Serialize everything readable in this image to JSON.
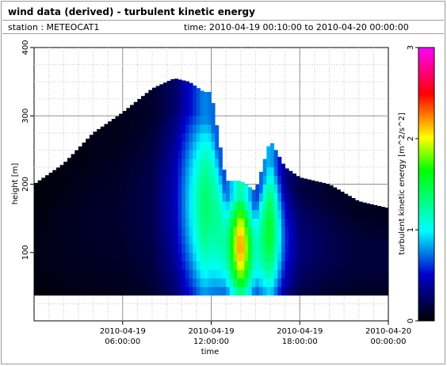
{
  "header": {
    "title": "wind data (derived) - turbulent kinetic energy",
    "station": "station : METEOCAT1",
    "time_range": "time: 2010-04-19 00:10:00 to 2010-04-20 00:00:00"
  },
  "chart_data": {
    "type": "heatmap",
    "title": "wind data (derived) - turbulent kinetic energy",
    "xlabel": "time",
    "ylabel": "height [m]",
    "colorbar_label": "turbulent kinetic energy [m^2/s^2]",
    "x_unit": "hours since 2010-04-19 00:00",
    "xlim": [
      0,
      24
    ],
    "ylim": [
      0,
      400
    ],
    "x_ticks": [
      {
        "value": 6,
        "line1": "2010-04-19",
        "line2": "06:00:00"
      },
      {
        "value": 12,
        "line1": "2010-04-19",
        "line2": "12:00:00"
      },
      {
        "value": 18,
        "line1": "2010-04-19",
        "line2": "18:00:00"
      },
      {
        "value": 24,
        "line1": "2010-04-20",
        "line2": "00:00:00"
      }
    ],
    "y_ticks": [
      100,
      200,
      300,
      400
    ],
    "colorbar_range": [
      0,
      3
    ],
    "colorbar_ticks": [
      0,
      1,
      2,
      3
    ],
    "colormap": [
      "#000000",
      "#0000cc",
      "#00ffff",
      "#00ff00",
      "#ffff00",
      "#ff0000",
      "#ff00ff"
    ],
    "grid": true,
    "tke_profile": {
      "time_hours": [
        0,
        2,
        4,
        6,
        8,
        9.5,
        10.5,
        11.5,
        12,
        13,
        14,
        15,
        16,
        17,
        18,
        20,
        22,
        24
      ],
      "top_height_m": [
        200,
        230,
        275,
        305,
        340,
        355,
        350,
        335,
        335,
        205,
        205,
        190,
        265,
        225,
        210,
        200,
        175,
        165
      ],
      "peak_tke": [
        0.05,
        0.08,
        0.1,
        0.12,
        0.2,
        0.45,
        0.9,
        1.4,
        1.3,
        1.2,
        2.3,
        1.1,
        1.6,
        0.6,
        0.3,
        0.2,
        0.15,
        0.15
      ]
    }
  }
}
